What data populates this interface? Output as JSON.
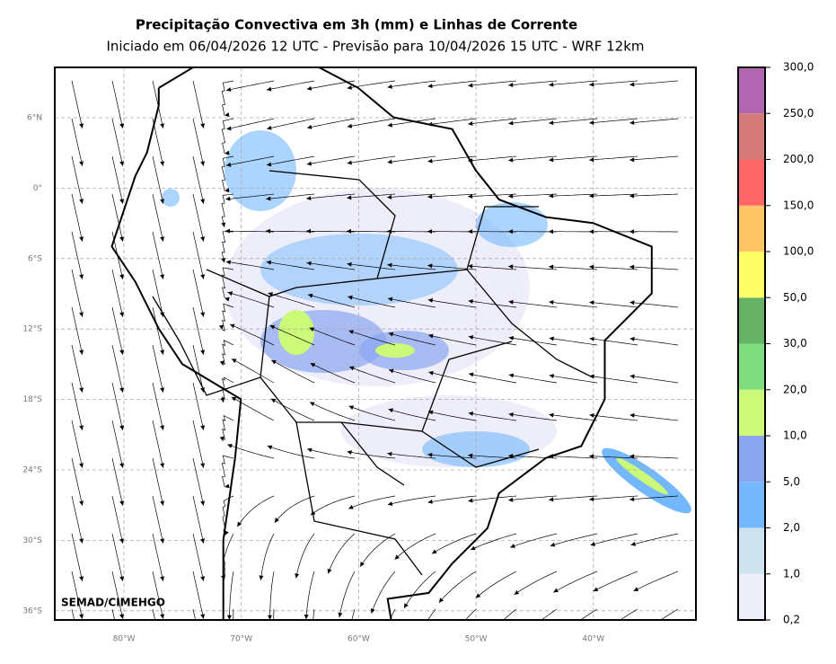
{
  "header": {
    "title": "Precipitação Convectiva em 3h (mm) e Linhas de Corrente",
    "subtitle": "Iniciado em 06/04/2026 12 UTC - Previsão para 10/04/2026 15 UTC - WRF 12km"
  },
  "map": {
    "lat_labels": [
      "6°N",
      "0°",
      "6°S",
      "12°S",
      "18°S",
      "24°S",
      "30°S",
      "36°S"
    ],
    "lon_labels": [
      "80°W",
      "70°W",
      "60°W",
      "50°W",
      "40°W"
    ],
    "credit": "SEMAD/CIMEHGO"
  },
  "colorbar": {
    "levels": [
      {
        "value": 0.2,
        "label": "0,2"
      },
      {
        "value": 1,
        "label": "1,0"
      },
      {
        "value": 2,
        "label": "2,0"
      },
      {
        "value": 5,
        "label": "5,0"
      },
      {
        "value": 10,
        "label": "10,0"
      },
      {
        "value": 20,
        "label": "20,0"
      },
      {
        "value": 30,
        "label": "30,0"
      },
      {
        "value": 50,
        "label": "50,0"
      },
      {
        "value": 100,
        "label": "100,0"
      },
      {
        "value": 150,
        "label": "150,0"
      },
      {
        "value": 200,
        "label": "200,0"
      },
      {
        "value": 250,
        "label": "250,0"
      },
      {
        "value": 300,
        "label": "300,0"
      }
    ],
    "colors": [
      "#eeeefa",
      "#cde4ee",
      "#73b8fd",
      "#8ca5ef",
      "#ccfa78",
      "#7fde7f",
      "#66b266",
      "#ffff66",
      "#ffc466",
      "#ff6666",
      "#d47a7a",
      "#b266b2"
    ]
  }
}
